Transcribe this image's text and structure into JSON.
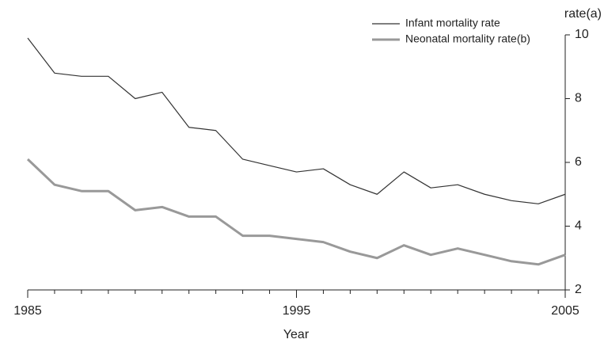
{
  "chart_data": {
    "type": "line",
    "x": [
      1985,
      1986,
      1987,
      1988,
      1989,
      1990,
      1991,
      1992,
      1993,
      1994,
      1995,
      1996,
      1997,
      1998,
      1999,
      2000,
      2001,
      2002,
      2003,
      2004,
      2005
    ],
    "series": [
      {
        "name": "Infant mortality rate",
        "color": "#333333",
        "values": [
          9.9,
          8.8,
          8.7,
          8.7,
          8.0,
          8.2,
          7.1,
          7.0,
          6.1,
          5.9,
          5.7,
          5.8,
          5.3,
          5.0,
          5.7,
          5.2,
          5.3,
          5.0,
          4.8,
          4.7,
          5.0
        ]
      },
      {
        "name": "Neonatal mortality rate(b)",
        "color": "#999999",
        "values": [
          6.1,
          5.3,
          5.1,
          5.1,
          4.5,
          4.6,
          4.3,
          4.3,
          3.7,
          3.7,
          3.6,
          3.5,
          3.2,
          3.0,
          3.4,
          3.1,
          3.3,
          3.1,
          2.9,
          2.8,
          3.1
        ]
      }
    ],
    "xlim": [
      1985,
      2005
    ],
    "xticks": [
      1985,
      1995,
      2005
    ],
    "ylim": [
      2,
      10
    ],
    "yticks": [
      2,
      4,
      6,
      8,
      10
    ],
    "xlabel": "Year",
    "ylabel": "rate(a)",
    "y_axis_side": "right"
  }
}
